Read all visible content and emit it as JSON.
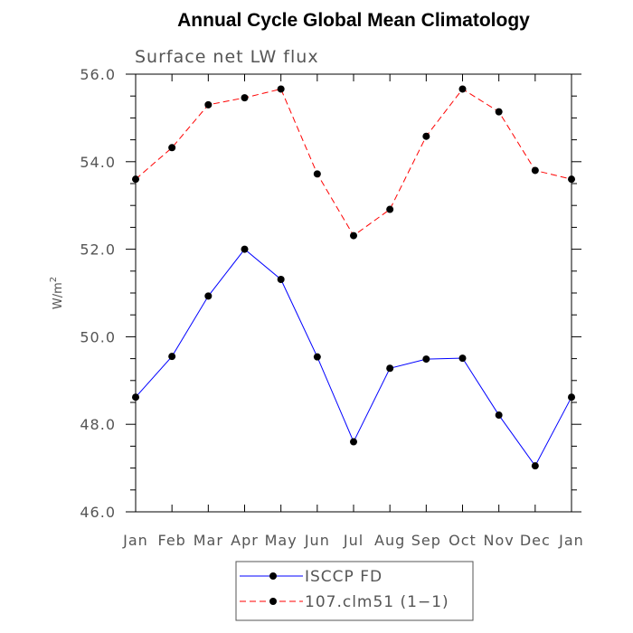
{
  "chart_data": {
    "type": "line",
    "title": "Annual Cycle Global Mean Climatology",
    "subtitle": "Surface net LW flux",
    "xlabel": "",
    "ylabel": "W/m",
    "ylabel_superscript": "2",
    "categories": [
      "Jan",
      "Feb",
      "Mar",
      "Apr",
      "May",
      "Jun",
      "Jul",
      "Aug",
      "Sep",
      "Oct",
      "Nov",
      "Dec",
      "Jan"
    ],
    "ylim": [
      46.0,
      56.0
    ],
    "yticks": [
      46.0,
      48.0,
      50.0,
      52.0,
      54.0,
      56.0
    ],
    "ytick_labels": [
      "46.0",
      "48.0",
      "50.0",
      "52.0",
      "54.0",
      "56.0"
    ],
    "series": [
      {
        "name": "ISCCP FD",
        "color": "#0000ff",
        "line_style": "solid",
        "marker_color": "#000000",
        "values": [
          48.62,
          49.55,
          50.93,
          52.0,
          51.31,
          49.54,
          47.6,
          49.28,
          49.49,
          49.51,
          48.21,
          47.05,
          48.62
        ]
      },
      {
        "name": "107.clm51 (1−1)",
        "color": "#ff0000",
        "line_style": "dashed",
        "marker_color": "#000000",
        "values": [
          53.6,
          54.32,
          55.3,
          55.46,
          55.66,
          53.72,
          52.31,
          52.91,
          54.58,
          55.66,
          55.14,
          53.8,
          53.6
        ]
      }
    ],
    "legend_position": "bottom-center"
  }
}
